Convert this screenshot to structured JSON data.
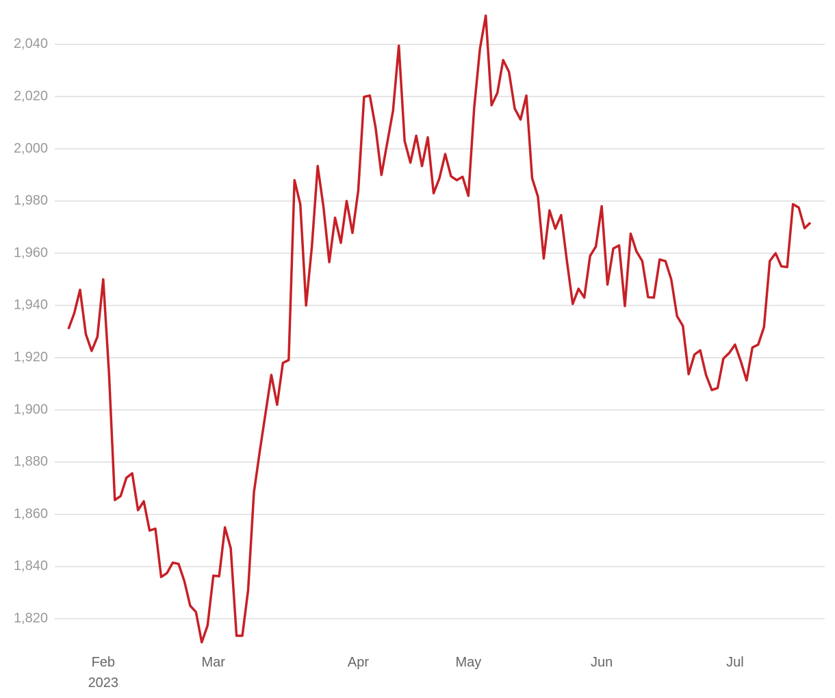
{
  "chart_data": {
    "type": "line",
    "categories": [
      null,
      null,
      null,
      null,
      null,
      null,
      "Feb\n2023",
      null,
      null,
      null,
      null,
      null,
      null,
      null,
      null,
      null,
      null,
      null,
      null,
      null,
      null,
      null,
      null,
      null,
      null,
      "Mar",
      null,
      null,
      null,
      null,
      null,
      null,
      null,
      null,
      null,
      null,
      null,
      null,
      null,
      null,
      null,
      null,
      null,
      null,
      null,
      null,
      null,
      null,
      null,
      null,
      "Apr",
      null,
      null,
      null,
      null,
      null,
      null,
      null,
      null,
      null,
      null,
      null,
      null,
      null,
      null,
      null,
      null,
      null,
      null,
      "May",
      null,
      null,
      null,
      null,
      null,
      null,
      null,
      null,
      null,
      null,
      null,
      null,
      null,
      null,
      null,
      null,
      null,
      null,
      null,
      null,
      null,
      null,
      "Jun",
      null,
      null,
      null,
      null,
      null,
      null,
      null,
      null,
      null,
      null,
      null,
      null,
      null,
      null,
      null,
      null,
      null,
      null,
      null,
      null,
      null,
      null,
      "Jul",
      null,
      null,
      null,
      null,
      null,
      null,
      null,
      null,
      null,
      null,
      null,
      null,
      null
    ],
    "series": [
      {
        "color": "#c62026",
        "values": [
          1931,
          1937,
          1946,
          1929,
          1922.6,
          1928,
          1950,
          1914,
          1865.5,
          1867,
          1874,
          1875.7,
          1861.6,
          1865,
          1853.8,
          1854.5,
          1836,
          1837.5,
          1841.5,
          1841,
          1834.4,
          1825,
          1822.6,
          1811,
          1817.4,
          1836.5,
          1836.3,
          1855,
          1847,
          1813.5,
          1813.5,
          1831,
          1868.4,
          1884,
          1898.7,
          1913.4,
          1902,
          1918,
          1919.1,
          1988,
          1978.8,
          1940,
          1962.6,
          1993.4,
          1977.7,
          1956.6,
          1973.6,
          1964,
          1980,
          1967.8,
          1984,
          2019.9,
          2020.4,
          2008,
          1990,
          2002.3,
          2014.6,
          2039.5,
          2003,
          1994.7,
          2005,
          1993.4,
          2004.4,
          1983,
          1988.7,
          1998,
          1989.5,
          1988,
          1989.3,
          1982,
          2015.7,
          2038.4,
          2051,
          2016.7,
          2021.4,
          2034,
          2029.5,
          2015.4,
          2011.2,
          2020.4,
          1988.7,
          1981.7,
          1958,
          1976.4,
          1969.4,
          1974.6,
          1957,
          1940.6,
          1946.4,
          1943,
          1959,
          1962.6,
          1978,
          1948,
          1961.8,
          1963,
          1939.8,
          1967.5,
          1960.7,
          1957,
          1943.2,
          1943,
          1957.6,
          1957,
          1950,
          1935.9,
          1932.2,
          1913.7,
          1921.2,
          1922.8,
          1913.4,
          1907.6,
          1908.4,
          1919.7,
          1921.8,
          1925,
          1918.6,
          1911.3,
          1923.9,
          1925,
          1931.7,
          1957,
          1960,
          1955,
          1954.7,
          1978.8,
          1977.5,
          1969.6,
          1971.7
        ]
      }
    ],
    "ylim": [
      1808,
      2057
    ],
    "yticks": [
      {
        "value": 1820,
        "label": "1,820"
      },
      {
        "value": 1840,
        "label": "1,840"
      },
      {
        "value": 1860,
        "label": "1,860"
      },
      {
        "value": 1880,
        "label": "1,880"
      },
      {
        "value": 1900,
        "label": "1,900"
      },
      {
        "value": 1920,
        "label": "1,920"
      },
      {
        "value": 1940,
        "label": "1,940"
      },
      {
        "value": 1960,
        "label": "1,960"
      },
      {
        "value": 1980,
        "label": "1,980"
      },
      {
        "value": 2000,
        "label": "2,000"
      },
      {
        "value": 2020,
        "label": "2,020"
      },
      {
        "value": 2040,
        "label": "2,040"
      }
    ],
    "grid": true
  }
}
